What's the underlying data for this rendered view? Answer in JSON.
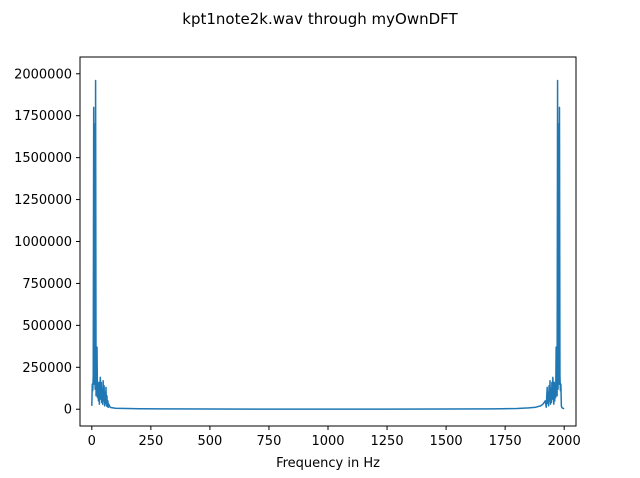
{
  "chart_data": {
    "type": "line",
    "title": "kpt1note2k.wav through myOwnDFT",
    "xlabel": "Frequency in Hz",
    "ylabel": "",
    "xlim": [
      -50,
      2050
    ],
    "ylim": [
      -100000,
      2100000
    ],
    "x_ticks": [
      0,
      250,
      500,
      750,
      1000,
      1250,
      1500,
      1750,
      2000
    ],
    "x_tick_labels": [
      "0",
      "250",
      "500",
      "750",
      "1000",
      "1250",
      "1500",
      "1750",
      "2000"
    ],
    "y_ticks": [
      0,
      250000,
      500000,
      750000,
      1000000,
      1250000,
      1500000,
      1750000,
      2000000
    ],
    "y_tick_labels": [
      "0",
      "250000",
      "500000",
      "750000",
      "1000000",
      "1250000",
      "1500000",
      "1750000",
      "2000000"
    ],
    "grid": false,
    "series": [
      {
        "color": "#1f77b4",
        "x": [
          0,
          2,
          4,
          6,
          8,
          10,
          12,
          14,
          16,
          18,
          20,
          22,
          24,
          26,
          28,
          30,
          32,
          34,
          36,
          38,
          40,
          42,
          44,
          46,
          48,
          50,
          52,
          54,
          56,
          58,
          60,
          62,
          64,
          66,
          68,
          70,
          72,
          76,
          80,
          90,
          100,
          120,
          150,
          200,
          300,
          500,
          750,
          1000,
          1250,
          1500,
          1700,
          1800,
          1850,
          1880,
          1900,
          1910,
          1920,
          1924,
          1928,
          1930,
          1932,
          1934,
          1936,
          1938,
          1940,
          1942,
          1944,
          1946,
          1948,
          1950,
          1952,
          1954,
          1956,
          1958,
          1960,
          1962,
          1964,
          1966,
          1968,
          1970,
          1972,
          1974,
          1976,
          1978,
          1980,
          1982,
          1984,
          1986,
          1988,
          1990,
          1992,
          1994,
          1996,
          1998,
          2000
        ],
        "y": [
          20000,
          150000,
          110000,
          200000,
          1800000,
          150000,
          1700000,
          120000,
          1960000,
          80000,
          300000,
          370000,
          70000,
          150000,
          50000,
          160000,
          30000,
          100000,
          190000,
          60000,
          160000,
          40000,
          120000,
          30000,
          170000,
          50000,
          140000,
          20000,
          100000,
          35000,
          130000,
          20000,
          80000,
          15000,
          50000,
          12000,
          30000,
          15000,
          10000,
          8000,
          6000,
          5000,
          4000,
          3000,
          2000,
          1000,
          800,
          700,
          800,
          1000,
          2000,
          4000,
          8000,
          12000,
          20000,
          30000,
          50000,
          12000,
          130000,
          35000,
          100000,
          20000,
          140000,
          50000,
          170000,
          30000,
          120000,
          40000,
          160000,
          60000,
          190000,
          100000,
          30000,
          160000,
          50000,
          150000,
          70000,
          370000,
          300000,
          80000,
          1960000,
          120000,
          1700000,
          150000,
          1800000,
          200000,
          110000,
          150000,
          20000,
          10000,
          8000,
          6000,
          5000,
          4000,
          3000
        ]
      }
    ]
  }
}
